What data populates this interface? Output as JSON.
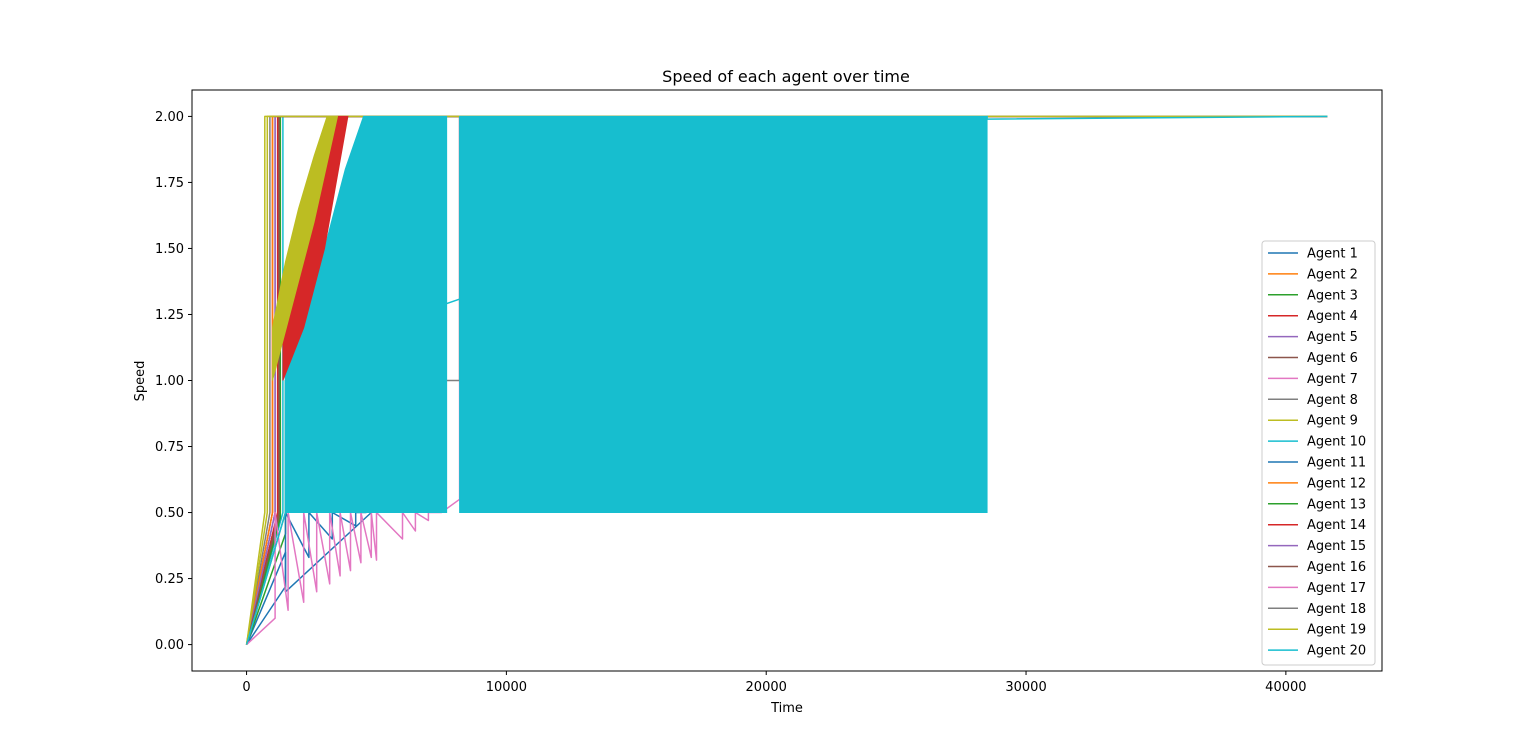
{
  "chart_data": {
    "type": "line",
    "title": "Speed of each agent over time",
    "xlabel": "Time",
    "ylabel": "Speed",
    "xlim": [
      -2100,
      43700
    ],
    "ylim": [
      -0.1,
      2.1
    ],
    "xticks": [
      0,
      10000,
      20000,
      30000,
      40000
    ],
    "xtick_labels": [
      "0",
      "10000",
      "20000",
      "30000",
      "40000"
    ],
    "yticks": [
      0.0,
      0.25,
      0.5,
      0.75,
      1.0,
      1.25,
      1.5,
      1.75,
      2.0
    ],
    "ytick_labels": [
      "0.00",
      "0.25",
      "0.50",
      "0.75",
      "1.00",
      "1.25",
      "1.50",
      "1.75",
      "2.00"
    ],
    "grid": false,
    "legend_position": "lower-right",
    "bands": [
      {
        "series": "Agent 20",
        "x": [
          4500,
          7700
        ],
        "y": [
          0.5,
          2.0
        ],
        "color": "#17becf"
      },
      {
        "series": "Agent 20",
        "x": [
          8200,
          28500
        ],
        "y": [
          0.5,
          2.0
        ],
        "color": "#17becf"
      },
      {
        "series": "Agent 20",
        "x": [
          1500,
          4500
        ],
        "y_low": 0.5,
        "upper": [
          [
            1500,
            1.08
          ],
          [
            2200,
            1.2
          ],
          [
            3000,
            1.5
          ],
          [
            3800,
            1.8
          ],
          [
            4500,
            2.0
          ]
        ],
        "color": "#17becf"
      },
      {
        "series": "Agent 14",
        "x": [
          1400,
          3900
        ],
        "lower": [
          [
            1400,
            1.0
          ],
          [
            2200,
            1.2
          ],
          [
            3000,
            1.5
          ],
          [
            3900,
            2.0
          ]
        ],
        "upper": [
          [
            1400,
            1.3
          ],
          [
            2000,
            1.55
          ],
          [
            2800,
            1.8
          ],
          [
            3500,
            2.0
          ],
          [
            3900,
            2.0
          ]
        ],
        "color": "#d62728"
      },
      {
        "series": "Agent 19",
        "x": [
          1000,
          3500
        ],
        "lower": [
          [
            1000,
            1.0
          ],
          [
            1800,
            1.3
          ],
          [
            2600,
            1.6
          ],
          [
            3500,
            2.0
          ]
        ],
        "upper": [
          [
            1000,
            1.2
          ],
          [
            1500,
            1.45
          ],
          [
            2000,
            1.65
          ],
          [
            2600,
            1.85
          ],
          [
            3100,
            2.0
          ],
          [
            3500,
            2.0
          ]
        ],
        "color": "#bcbd22"
      }
    ],
    "series": [
      {
        "name": "Agent 1",
        "color": "#1f77b4",
        "x": [
          0,
          1500,
          1500,
          4800,
          4800,
          41600
        ],
        "y": [
          0,
          0.35,
          0.2,
          0.5,
          2.0,
          2.0
        ]
      },
      {
        "name": "Agent 2",
        "color": "#ff7f0e",
        "x": [
          0,
          1200,
          1200,
          41600
        ],
        "y": [
          0,
          0.5,
          2.0,
          2.0
        ]
      },
      {
        "name": "Agent 3",
        "color": "#2ca02c",
        "x": [
          0,
          1500,
          1500,
          5000,
          41600
        ],
        "y": [
          0,
          0.42,
          1.0,
          2.0,
          2.0
        ]
      },
      {
        "name": "Agent 4",
        "color": "#d62728",
        "x": [
          0,
          1000,
          1000,
          41600
        ],
        "y": [
          0,
          0.5,
          2.0,
          2.0
        ]
      },
      {
        "name": "Agent 5",
        "color": "#9467bd",
        "x": [
          0,
          1100,
          1100,
          41600
        ],
        "y": [
          0,
          0.5,
          2.0,
          2.0
        ]
      },
      {
        "name": "Agent 6",
        "color": "#8c564b",
        "x": [
          0,
          1300,
          1300,
          41600
        ],
        "y": [
          0,
          0.5,
          2.0,
          2.0
        ]
      },
      {
        "name": "Agent 7",
        "color": "#e377c2",
        "x": [
          0,
          1200,
          1200,
          41600
        ],
        "y": [
          0,
          0.5,
          2.0,
          2.0
        ]
      },
      {
        "name": "Agent 8",
        "color": "#7f7f7f",
        "x": [
          0,
          900,
          900,
          41600
        ],
        "y": [
          0,
          0.5,
          2.0,
          2.0
        ]
      },
      {
        "name": "Agent 9",
        "color": "#bcbd22",
        "x": [
          0,
          700,
          700,
          41600
        ],
        "y": [
          0,
          0.5,
          2.0,
          2.0
        ]
      },
      {
        "name": "Agent 10",
        "color": "#17becf",
        "x": [
          0,
          1400,
          1400,
          41600
        ],
        "y": [
          0,
          0.5,
          2.0,
          2.0
        ]
      },
      {
        "name": "Agent 11",
        "color": "#1f77b4",
        "x": [
          0,
          1500,
          1500,
          2400,
          2400,
          3300,
          3300,
          4200,
          4200,
          4600,
          4600,
          41600
        ],
        "y": [
          0,
          0.22,
          0.5,
          0.33,
          0.5,
          0.4,
          0.5,
          0.45,
          0.5,
          0.5,
          2.0,
          2.0
        ]
      },
      {
        "name": "Agent 12",
        "color": "#ff7f0e",
        "x": [
          0,
          1000,
          1000,
          41600
        ],
        "y": [
          0,
          0.5,
          2.0,
          2.0
        ]
      },
      {
        "name": "Agent 13",
        "color": "#2ca02c",
        "x": [
          0,
          1300,
          1300,
          41600
        ],
        "y": [
          0,
          0.48,
          2.0,
          2.0
        ]
      },
      {
        "name": "Agent 14",
        "color": "#d62728",
        "x": [
          0,
          1200,
          1200,
          41600
        ],
        "y": [
          0,
          0.5,
          2.0,
          2.0
        ]
      },
      {
        "name": "Agent 15",
        "color": "#9467bd",
        "x": [
          0,
          1100,
          1100,
          41600
        ],
        "y": [
          0,
          0.5,
          2.0,
          2.0
        ]
      },
      {
        "name": "Agent 16",
        "color": "#8c564b",
        "x": [
          0,
          1250,
          1250,
          41600
        ],
        "y": [
          0,
          0.5,
          2.0,
          2.0
        ]
      },
      {
        "name": "Agent 17",
        "color": "#e377c2",
        "x": [
          0,
          1100,
          1100,
          1600,
          1600,
          2200,
          2200,
          2700,
          2700,
          3200,
          3200,
          3600,
          3600,
          4000,
          4000,
          4400,
          4400,
          4800,
          4800,
          5000,
          5000,
          6000,
          6000,
          6500,
          6500,
          7000,
          7000,
          7500,
          7500,
          8200,
          8200,
          41600
        ],
        "y": [
          0,
          0.1,
          0.5,
          0.13,
          0.5,
          0.16,
          0.5,
          0.2,
          0.5,
          0.23,
          0.5,
          0.26,
          0.5,
          0.28,
          0.5,
          0.31,
          0.5,
          0.33,
          0.5,
          0.32,
          0.5,
          0.4,
          0.5,
          0.43,
          0.5,
          0.47,
          0.5,
          0.5,
          0.5,
          0.55,
          2.0,
          2.0
        ]
      },
      {
        "name": "Agent 18",
        "color": "#7f7f7f",
        "x": [
          0,
          1500,
          1500,
          8200,
          8200,
          41600
        ],
        "y": [
          0,
          0.5,
          1.0,
          1.0,
          2.0,
          2.0
        ]
      },
      {
        "name": "Agent 19",
        "color": "#bcbd22",
        "x": [
          0,
          800,
          800,
          41600
        ],
        "y": [
          0,
          0.5,
          2.0,
          2.0
        ]
      },
      {
        "name": "Agent 20",
        "color": "#17becf",
        "x": [
          0,
          1500,
          1500,
          28500,
          28500,
          41600
        ],
        "y": [
          0,
          0.5,
          1.08,
          2.0,
          1.99,
          2.0
        ]
      }
    ]
  }
}
